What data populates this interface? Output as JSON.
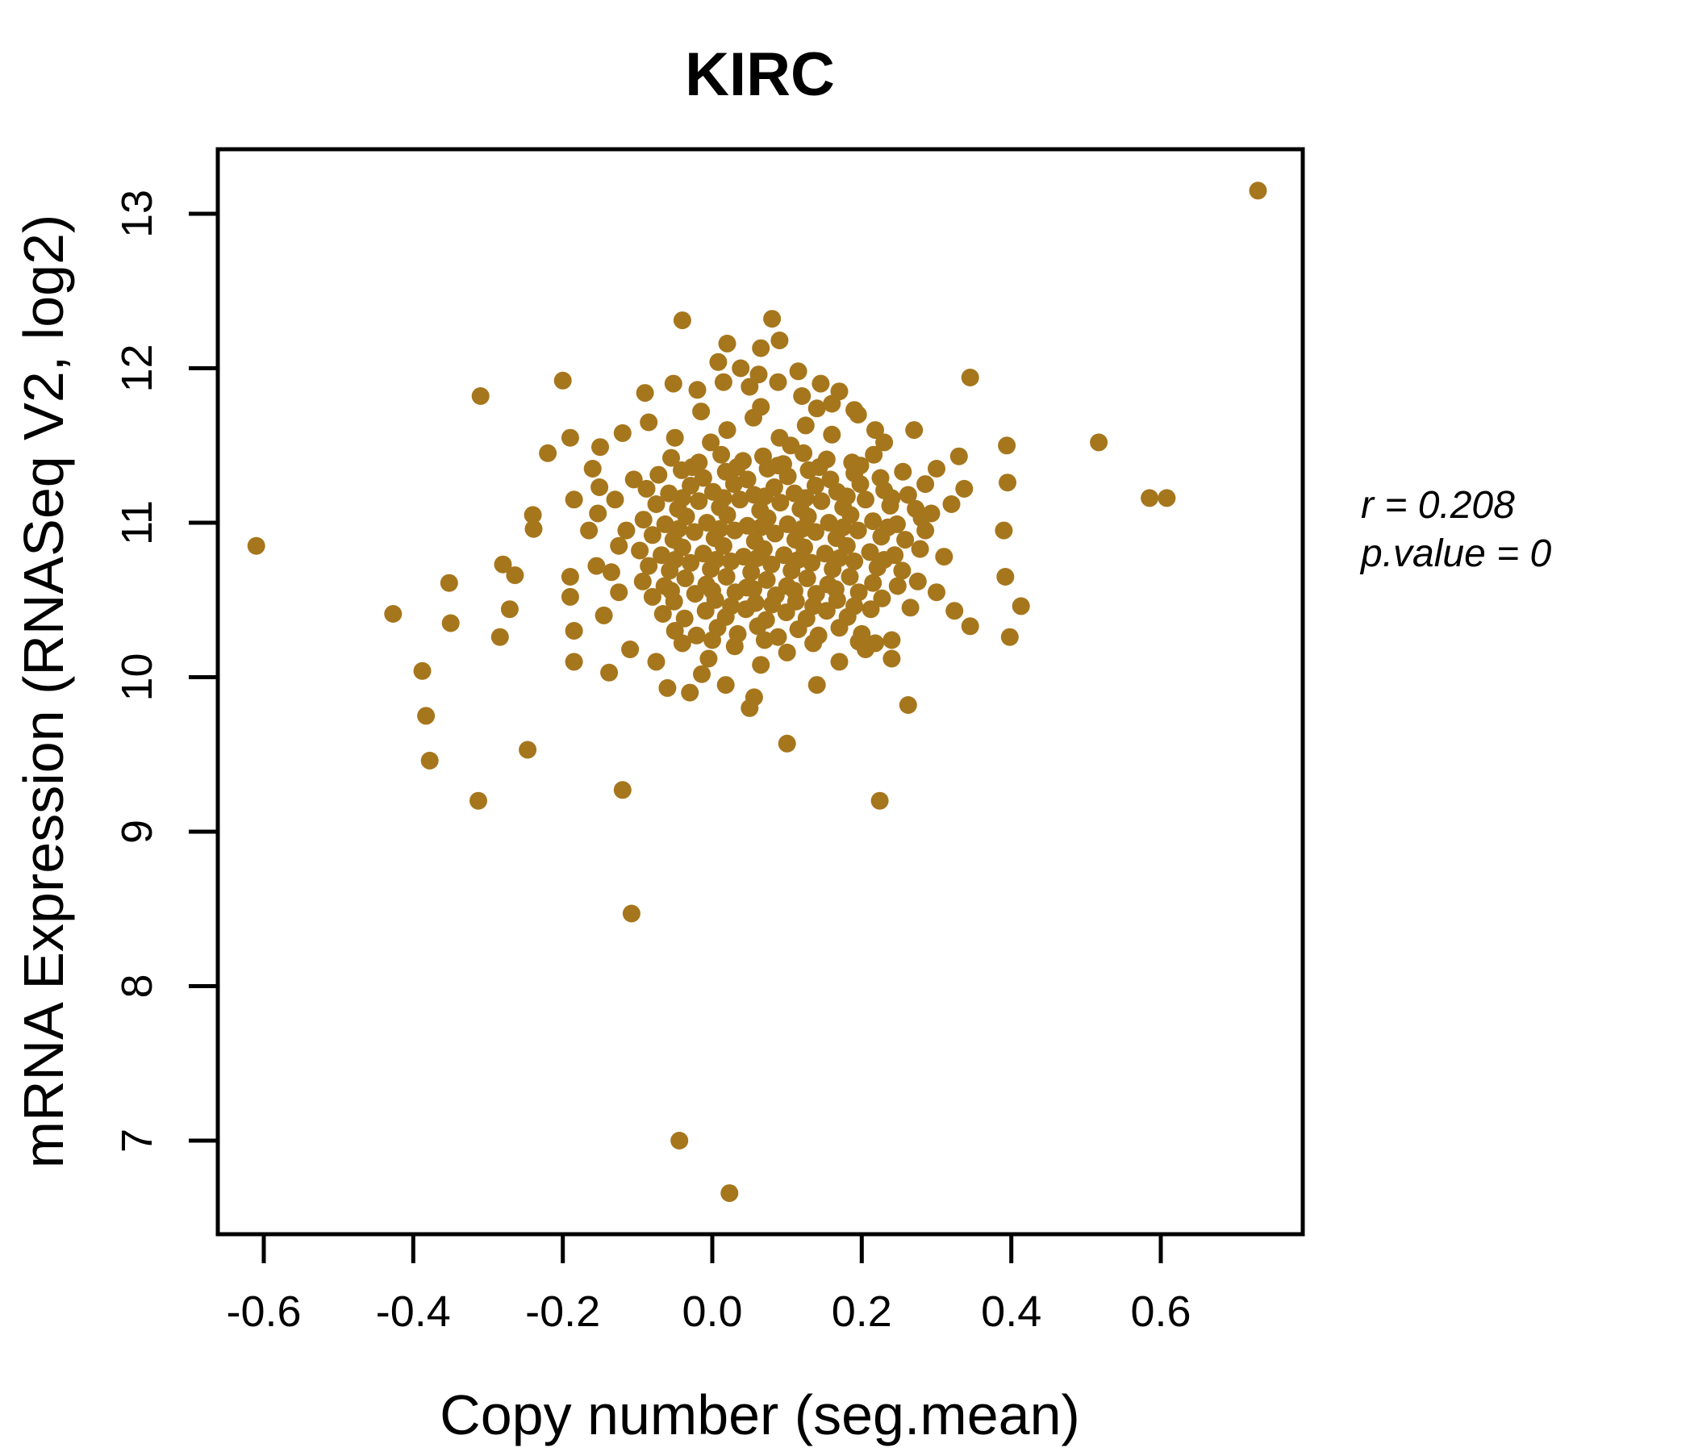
{
  "title": "KIRC",
  "title_color": "#B8860B",
  "annotation": {
    "line1": "r = 0.208",
    "line2": "p.value = 0"
  },
  "chart_data": {
    "type": "scatter",
    "title": "KIRC",
    "xlabel": "Copy number (seg.mean)",
    "ylabel": "mRNA Expression (RNASeq V2, log2)",
    "x_ticks": [
      -0.6,
      -0.4,
      -0.2,
      0.0,
      0.2,
      0.4,
      0.6
    ],
    "y_ticks": [
      7,
      8,
      9,
      10,
      11,
      12,
      13
    ],
    "xlim": [
      -0.66,
      0.79
    ],
    "ylim": [
      6.4,
      13.42
    ],
    "grid": false,
    "legend": "none",
    "point_color": "#A6761D",
    "axis_color": "#000000",
    "correlation_r": 0.208,
    "p_value": 0,
    "points": [
      [
        0.73,
        13.15
      ],
      [
        -0.61,
        10.85
      ],
      [
        -0.31,
        11.82
      ],
      [
        -0.2,
        11.92
      ],
      [
        -0.04,
        12.31
      ],
      [
        0.08,
        12.32
      ],
      [
        0.02,
        12.16
      ],
      [
        0.065,
        12.13
      ],
      [
        0.09,
        12.18
      ],
      [
        0.008,
        12.04
      ],
      [
        0.038,
        12.0
      ],
      [
        0.115,
        11.98
      ],
      [
        -0.052,
        11.9
      ],
      [
        0.015,
        11.91
      ],
      [
        0.088,
        11.91
      ],
      [
        0.145,
        11.9
      ],
      [
        0.16,
        11.77
      ],
      [
        0.19,
        11.73
      ],
      [
        0.218,
        11.6
      ],
      [
        0.27,
        11.6
      ],
      [
        0.345,
        11.94
      ],
      [
        0.517,
        11.52
      ],
      [
        0.585,
        11.16
      ],
      [
        0.608,
        11.16
      ],
      [
        0.394,
        11.5
      ],
      [
        0.33,
        11.43
      ],
      [
        0.395,
        11.26
      ],
      [
        0.337,
        11.22
      ],
      [
        0.293,
        11.06
      ],
      [
        0.39,
        10.95
      ],
      [
        0.392,
        10.65
      ],
      [
        0.413,
        10.46
      ],
      [
        0.324,
        10.43
      ],
      [
        0.345,
        10.33
      ],
      [
        0.398,
        10.26
      ],
      [
        -0.427,
        10.41
      ],
      [
        -0.352,
        10.61
      ],
      [
        -0.35,
        10.35
      ],
      [
        -0.388,
        10.04
      ],
      [
        -0.383,
        9.75
      ],
      [
        -0.378,
        9.46
      ],
      [
        -0.313,
        9.2
      ],
      [
        -0.247,
        9.53
      ],
      [
        -0.12,
        9.27
      ],
      [
        -0.108,
        8.47
      ],
      [
        -0.044,
        7.0
      ],
      [
        0.023,
        6.66
      ],
      [
        0.224,
        9.2
      ],
      [
        0.262,
        9.82
      ],
      [
        0.1,
        9.57
      ],
      [
        -0.151,
        11.23
      ],
      [
        -0.153,
        11.06
      ],
      [
        -0.239,
        10.96
      ],
      [
        -0.28,
        10.73
      ],
      [
        -0.264,
        10.66
      ],
      [
        -0.19,
        10.65
      ],
      [
        -0.271,
        10.44
      ],
      [
        -0.284,
        10.26
      ],
      [
        -0.185,
        10.3
      ],
      [
        -0.185,
        10.1
      ],
      [
        -0.138,
        10.03
      ],
      [
        -0.014,
        10.02
      ],
      [
        0.018,
        9.95
      ],
      [
        0.056,
        9.87
      ],
      [
        0.05,
        9.8
      ],
      [
        0.196,
        10.23
      ],
      [
        0.218,
        10.22
      ],
      [
        0.24,
        10.24
      ],
      [
        -0.22,
        11.45
      ],
      [
        -0.24,
        11.05
      ],
      [
        -0.15,
        11.49
      ],
      [
        -0.19,
        11.55
      ],
      [
        -0.055,
        11.42
      ],
      [
        -0.018,
        11.39
      ],
      [
        0.012,
        11.44
      ],
      [
        0.041,
        11.4
      ],
      [
        0.068,
        11.43
      ],
      [
        0.095,
        11.38
      ],
      [
        0.122,
        11.45
      ],
      [
        0.153,
        11.41
      ],
      [
        0.187,
        11.39
      ],
      [
        0.216,
        11.44
      ],
      [
        -0.072,
        11.31
      ],
      [
        -0.041,
        11.34
      ],
      [
        -0.012,
        11.29
      ],
      [
        0.018,
        11.33
      ],
      [
        0.047,
        11.28
      ],
      [
        0.074,
        11.35
      ],
      [
        0.101,
        11.3
      ],
      [
        0.129,
        11.34
      ],
      [
        0.158,
        11.28
      ],
      [
        0.19,
        11.32
      ],
      [
        0.225,
        11.29
      ],
      [
        0.255,
        11.33
      ],
      [
        -0.088,
        11.22
      ],
      [
        -0.058,
        11.19
      ],
      [
        -0.029,
        11.24
      ],
      [
        0.001,
        11.2
      ],
      [
        0.029,
        11.25
      ],
      [
        0.056,
        11.18
      ],
      [
        0.083,
        11.23
      ],
      [
        0.11,
        11.19
      ],
      [
        0.138,
        11.24
      ],
      [
        0.167,
        11.2
      ],
      [
        0.198,
        11.25
      ],
      [
        0.23,
        11.21
      ],
      [
        0.262,
        11.18
      ],
      [
        -0.075,
        11.12
      ],
      [
        -0.046,
        11.09
      ],
      [
        -0.018,
        11.14
      ],
      [
        0.01,
        11.1
      ],
      [
        0.037,
        11.15
      ],
      [
        0.064,
        11.08
      ],
      [
        0.091,
        11.13
      ],
      [
        0.118,
        11.09
      ],
      [
        0.146,
        11.14
      ],
      [
        0.175,
        11.1
      ],
      [
        0.205,
        11.15
      ],
      [
        0.238,
        11.11
      ],
      [
        0.272,
        11.09
      ],
      [
        -0.092,
        11.02
      ],
      [
        -0.063,
        10.99
      ],
      [
        -0.035,
        11.04
      ],
      [
        -0.007,
        11.0
      ],
      [
        0.02,
        11.05
      ],
      [
        0.047,
        10.98
      ],
      [
        0.074,
        11.03
      ],
      [
        0.101,
        10.99
      ],
      [
        0.128,
        11.04
      ],
      [
        0.156,
        11.0
      ],
      [
        0.185,
        11.05
      ],
      [
        0.215,
        11.01
      ],
      [
        0.247,
        10.99
      ],
      [
        0.28,
        11.03
      ],
      [
        -0.08,
        10.92
      ],
      [
        -0.052,
        10.89
      ],
      [
        -0.024,
        10.94
      ],
      [
        0.003,
        10.9
      ],
      [
        0.03,
        10.95
      ],
      [
        0.057,
        10.88
      ],
      [
        0.084,
        10.93
      ],
      [
        0.111,
        10.89
      ],
      [
        0.138,
        10.94
      ],
      [
        0.166,
        10.9
      ],
      [
        0.195,
        10.95
      ],
      [
        0.226,
        10.91
      ],
      [
        0.258,
        10.89
      ],
      [
        -0.097,
        10.82
      ],
      [
        -0.068,
        10.79
      ],
      [
        -0.04,
        10.84
      ],
      [
        -0.012,
        10.8
      ],
      [
        0.015,
        10.85
      ],
      [
        0.042,
        10.78
      ],
      [
        0.069,
        10.83
      ],
      [
        0.096,
        10.79
      ],
      [
        0.123,
        10.84
      ],
      [
        0.151,
        10.8
      ],
      [
        0.18,
        10.85
      ],
      [
        0.211,
        10.81
      ],
      [
        0.244,
        10.79
      ],
      [
        0.278,
        10.83
      ],
      [
        -0.085,
        10.72
      ],
      [
        -0.057,
        10.69
      ],
      [
        -0.029,
        10.74
      ],
      [
        -0.002,
        10.7
      ],
      [
        0.025,
        10.75
      ],
      [
        0.052,
        10.68
      ],
      [
        0.079,
        10.73
      ],
      [
        0.106,
        10.69
      ],
      [
        0.133,
        10.74
      ],
      [
        0.161,
        10.7
      ],
      [
        0.19,
        10.75
      ],
      [
        0.221,
        10.71
      ],
      [
        0.254,
        10.69
      ],
      [
        -0.093,
        10.62
      ],
      [
        -0.064,
        10.59
      ],
      [
        -0.036,
        10.64
      ],
      [
        -0.008,
        10.6
      ],
      [
        0.019,
        10.65
      ],
      [
        0.046,
        10.58
      ],
      [
        0.073,
        10.63
      ],
      [
        0.1,
        10.59
      ],
      [
        0.127,
        10.64
      ],
      [
        0.155,
        10.6
      ],
      [
        0.184,
        10.65
      ],
      [
        0.215,
        10.61
      ],
      [
        0.248,
        10.59
      ],
      [
        -0.08,
        10.52
      ],
      [
        -0.051,
        10.49
      ],
      [
        -0.023,
        10.54
      ],
      [
        0.004,
        10.5
      ],
      [
        0.031,
        10.55
      ],
      [
        0.058,
        10.48
      ],
      [
        0.085,
        10.53
      ],
      [
        0.112,
        10.49
      ],
      [
        0.139,
        10.54
      ],
      [
        0.167,
        10.5
      ],
      [
        0.196,
        10.55
      ],
      [
        0.227,
        10.51
      ],
      [
        -0.066,
        10.41
      ],
      [
        -0.037,
        10.38
      ],
      [
        -0.009,
        10.43
      ],
      [
        0.018,
        10.39
      ],
      [
        0.045,
        10.44
      ],
      [
        0.072,
        10.37
      ],
      [
        0.099,
        10.42
      ],
      [
        0.126,
        10.38
      ],
      [
        0.153,
        10.43
      ],
      [
        0.181,
        10.39
      ],
      [
        0.212,
        10.44
      ],
      [
        -0.05,
        10.3
      ],
      [
        -0.021,
        10.27
      ],
      [
        0.007,
        10.32
      ],
      [
        0.034,
        10.28
      ],
      [
        0.061,
        10.33
      ],
      [
        0.088,
        10.26
      ],
      [
        0.115,
        10.31
      ],
      [
        0.142,
        10.27
      ],
      [
        0.17,
        10.32
      ],
      [
        0.2,
        10.28
      ],
      [
        -0.027,
        11.36
      ],
      [
        0.033,
        11.36
      ],
      [
        0.088,
        11.37
      ],
      [
        0.143,
        11.36
      ],
      [
        0.198,
        11.37
      ],
      [
        -0.04,
        11.16
      ],
      [
        0.015,
        11.16
      ],
      [
        0.07,
        11.17
      ],
      [
        0.125,
        11.16
      ],
      [
        0.18,
        11.17
      ],
      [
        0.24,
        11.16
      ],
      [
        -0.045,
        10.96
      ],
      [
        0.01,
        10.96
      ],
      [
        0.065,
        10.97
      ],
      [
        0.12,
        10.96
      ],
      [
        0.175,
        10.97
      ],
      [
        0.235,
        10.97
      ],
      [
        -0.05,
        10.76
      ],
      [
        0.005,
        10.76
      ],
      [
        0.06,
        10.77
      ],
      [
        0.115,
        10.76
      ],
      [
        0.17,
        10.77
      ],
      [
        0.23,
        10.76
      ],
      [
        -0.055,
        10.56
      ],
      [
        0.0,
        10.56
      ],
      [
        0.055,
        10.57
      ],
      [
        0.11,
        10.56
      ],
      [
        0.165,
        10.57
      ],
      [
        0.025,
        10.46
      ],
      [
        0.08,
        10.47
      ],
      [
        0.135,
        10.46
      ],
      [
        0.19,
        10.46
      ],
      [
        -0.12,
        11.58
      ],
      [
        -0.085,
        11.65
      ],
      [
        -0.05,
        11.55
      ],
      [
        -0.015,
        11.72
      ],
      [
        0.02,
        11.6
      ],
      [
        0.055,
        11.68
      ],
      [
        0.09,
        11.55
      ],
      [
        0.125,
        11.63
      ],
      [
        0.16,
        11.57
      ],
      [
        0.195,
        11.7
      ],
      [
        0.23,
        11.52
      ],
      [
        0.065,
        11.75
      ],
      [
        -0.002,
        11.52
      ],
      [
        0.14,
        11.74
      ],
      [
        0.105,
        11.5
      ],
      [
        -0.09,
        11.84
      ],
      [
        0.05,
        11.88
      ],
      [
        0.12,
        11.82
      ],
      [
        0.062,
        11.96
      ],
      [
        -0.02,
        11.86
      ],
      [
        0.17,
        11.85
      ],
      [
        -0.11,
        10.18
      ],
      [
        -0.075,
        10.1
      ],
      [
        -0.04,
        10.22
      ],
      [
        -0.005,
        10.12
      ],
      [
        0.03,
        10.2
      ],
      [
        0.065,
        10.08
      ],
      [
        0.1,
        10.16
      ],
      [
        0.135,
        10.22
      ],
      [
        0.17,
        10.1
      ],
      [
        0.205,
        10.18
      ],
      [
        0.24,
        10.12
      ],
      [
        0.0,
        10.24
      ],
      [
        0.07,
        10.24
      ],
      [
        -0.16,
        11.35
      ],
      [
        -0.185,
        11.15
      ],
      [
        -0.13,
        11.15
      ],
      [
        -0.165,
        10.95
      ],
      [
        -0.125,
        10.85
      ],
      [
        -0.155,
        10.72
      ],
      [
        -0.19,
        10.52
      ],
      [
        -0.125,
        10.55
      ],
      [
        -0.145,
        10.4
      ],
      [
        -0.105,
        11.28
      ],
      [
        -0.115,
        10.95
      ],
      [
        -0.135,
        10.68
      ],
      [
        0.3,
        11.35
      ],
      [
        0.32,
        11.12
      ],
      [
        0.285,
        10.95
      ],
      [
        0.31,
        10.78
      ],
      [
        0.275,
        10.62
      ],
      [
        0.3,
        10.55
      ],
      [
        0.265,
        10.45
      ],
      [
        0.285,
        11.25
      ],
      [
        -0.06,
        9.93
      ],
      [
        0.14,
        9.95
      ],
      [
        -0.03,
        9.9
      ]
    ]
  }
}
